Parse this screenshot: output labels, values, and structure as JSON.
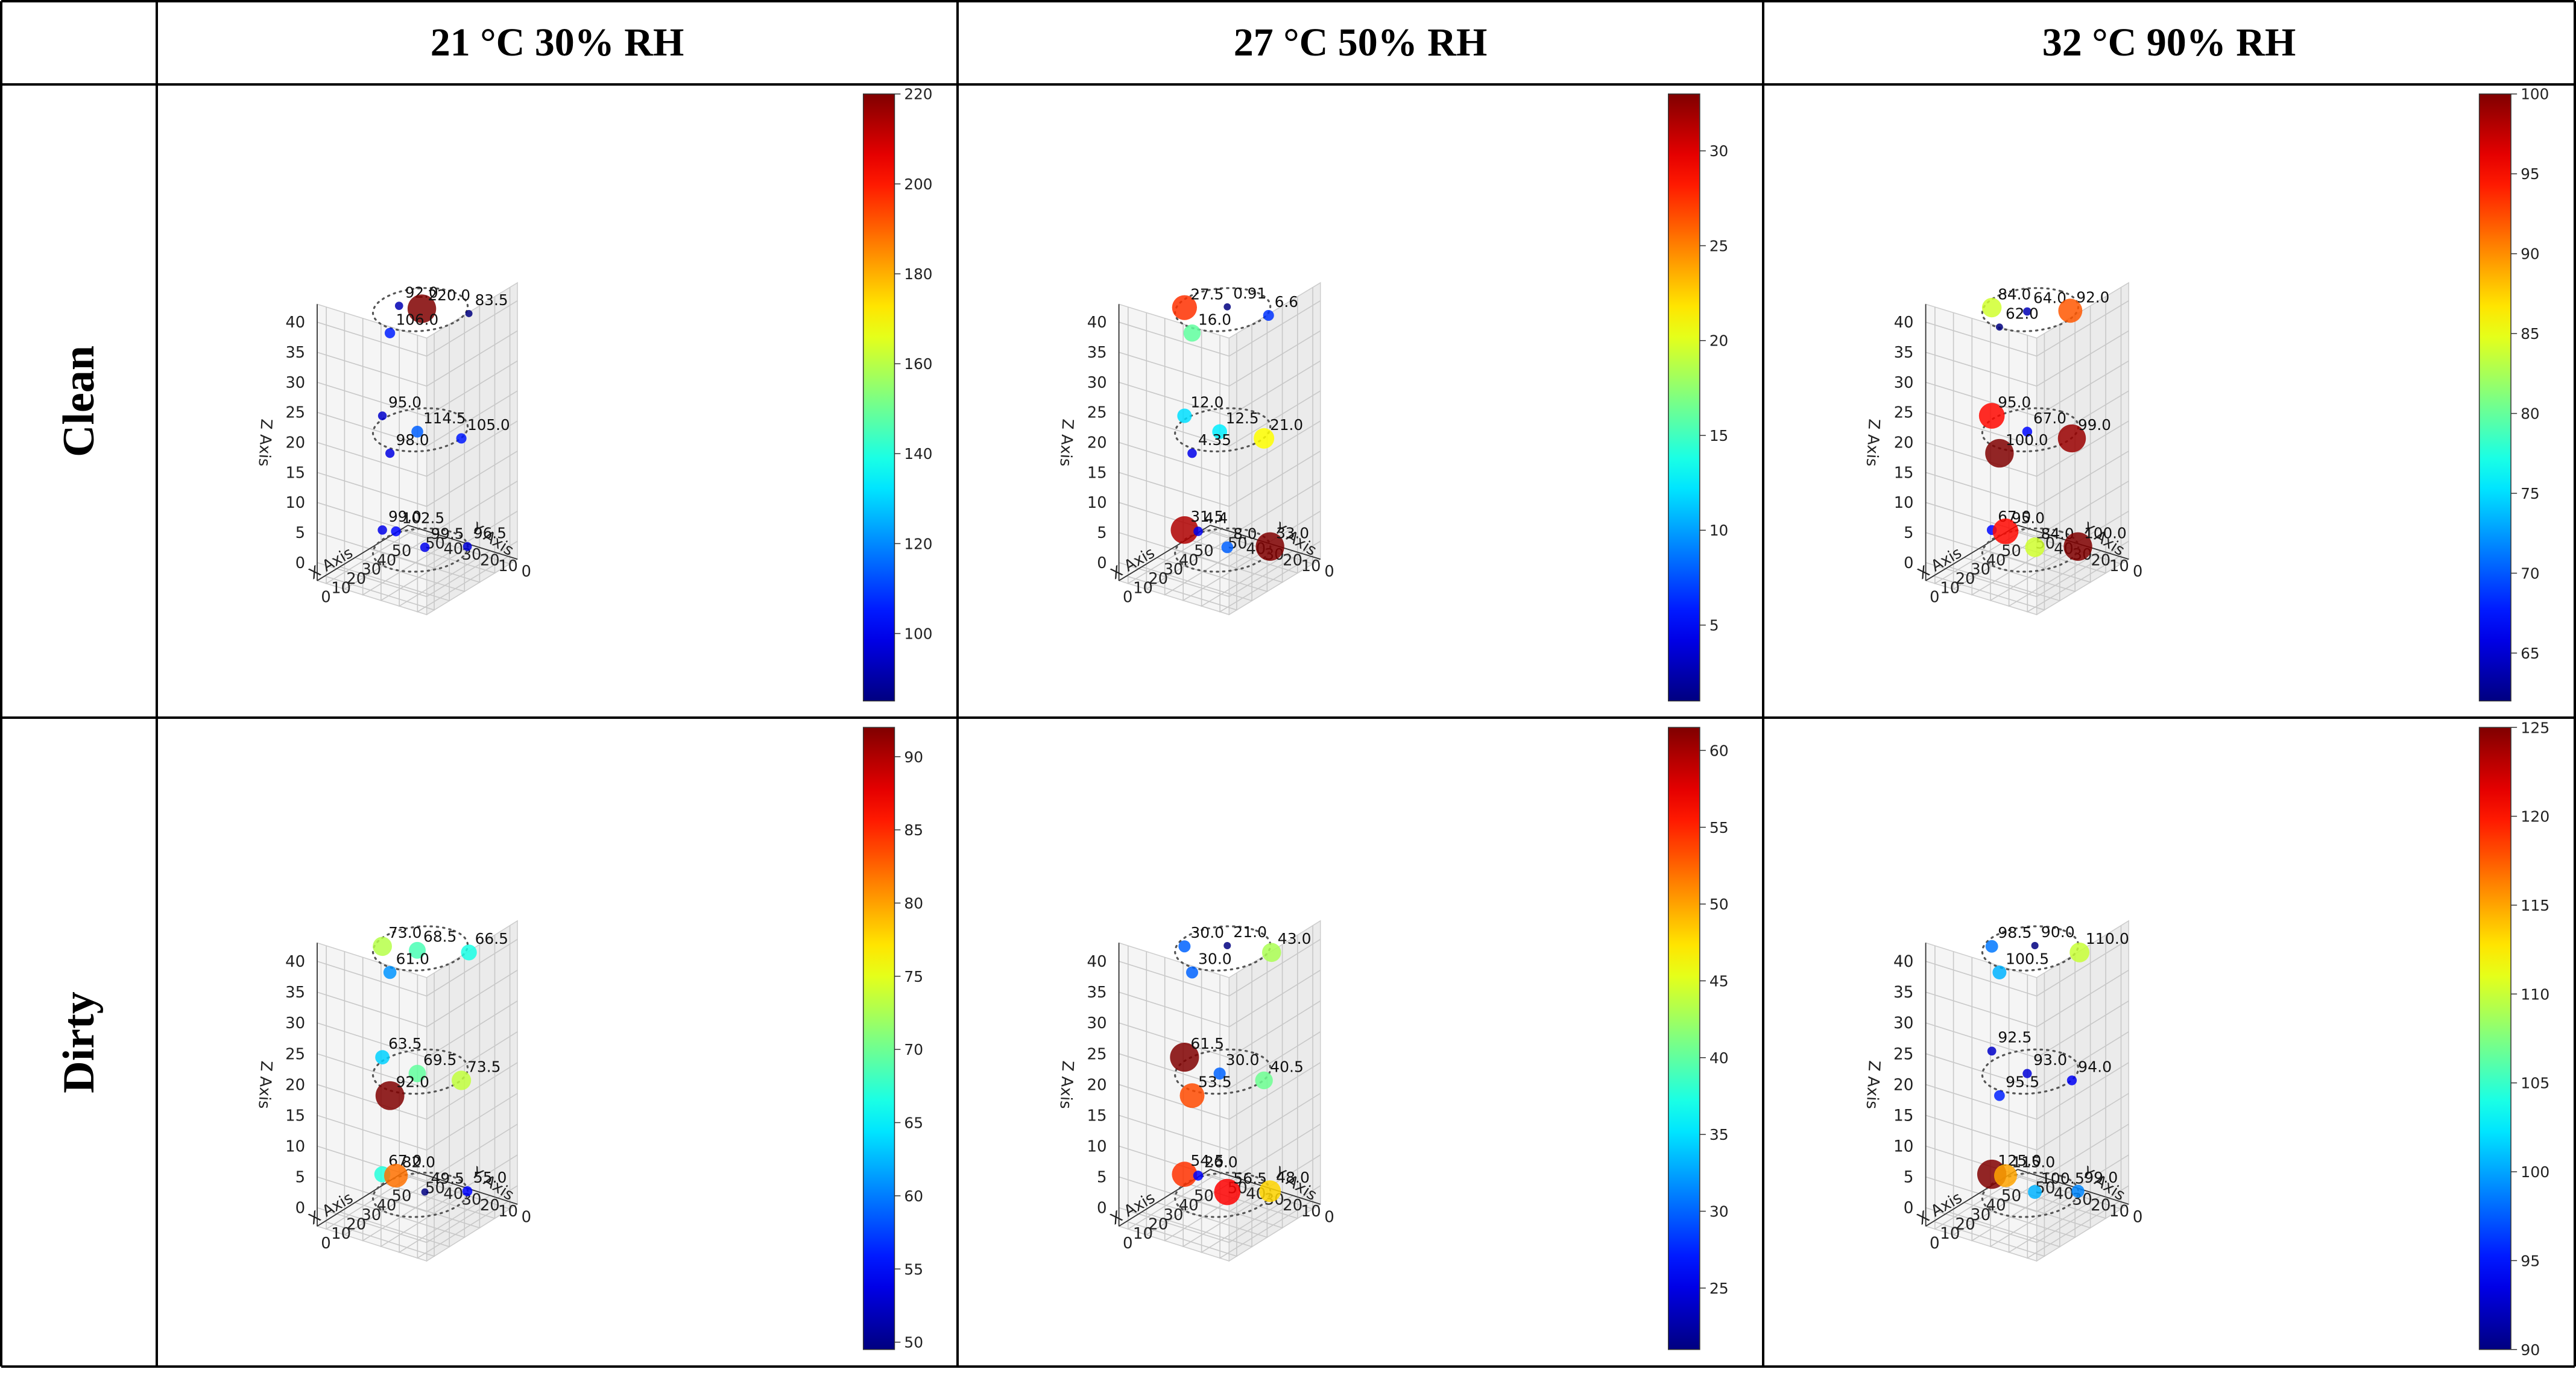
{
  "table": {
    "column_headers": [
      "21 °C 30% RH",
      "27 °C 50% RH",
      "32 °C 90% RH"
    ],
    "row_labels": [
      "Clean",
      "Dirty"
    ]
  },
  "axes": {
    "xlabel": "X Axis",
    "ylabel": "Y Axis",
    "zlabel": "Z Axis",
    "x_ticks": [
      0,
      10,
      20,
      30,
      40,
      50
    ],
    "y_ticks": [
      0,
      10,
      20,
      30,
      40,
      50
    ],
    "z_ticks": [
      0,
      5,
      10,
      15,
      20,
      25,
      30,
      35,
      40
    ]
  },
  "chart_data": [
    {
      "type": "scatter3d",
      "row": "Clean",
      "column": "21 °C 30% RH",
      "xlabel": "X Axis",
      "ylabel": "Y Axis",
      "zlabel": "Z Axis",
      "xlim": [
        0,
        50
      ],
      "ylim": [
        0,
        50
      ],
      "zlim": [
        0,
        40
      ],
      "colorbar": {
        "colormap": "jet",
        "range": [
          85,
          220
        ],
        "ticks": [
          100,
          120,
          140,
          160,
          180,
          200,
          220
        ]
      },
      "points": [
        {
          "x": 25,
          "y": 35,
          "z": 40,
          "value": 92.0,
          "label": "92.0"
        },
        {
          "x": 28,
          "y": 25,
          "z": 40,
          "value": 220.0,
          "label": "220.0"
        },
        {
          "x": 35,
          "y": 5,
          "z": 40,
          "value": 83.5,
          "label": "83.5"
        },
        {
          "x": 25,
          "y": 40,
          "z": 35,
          "value": 106.0,
          "label": "106.0"
        },
        {
          "x": 20,
          "y": 40,
          "z": 22,
          "value": 95.0,
          "label": "95.0"
        },
        {
          "x": 25,
          "y": 25,
          "z": 20,
          "value": 114.5,
          "label": "114.5"
        },
        {
          "x": 30,
          "y": 5,
          "z": 20,
          "value": 105.0,
          "label": "105.0"
        },
        {
          "x": 25,
          "y": 40,
          "z": 15,
          "value": 98.0,
          "label": "98.0"
        },
        {
          "x": 20,
          "y": 40,
          "z": 3,
          "value": 99.0,
          "label": "99.0"
        },
        {
          "x": 30,
          "y": 25,
          "z": 0,
          "value": 99.5,
          "label": "99.5"
        },
        {
          "x": 40,
          "y": 10,
          "z": 0,
          "value": 96.5,
          "label": "96.5"
        },
        {
          "x": 35,
          "y": 45,
          "z": 0,
          "value": 102.5,
          "label": "102.5"
        }
      ]
    },
    {
      "type": "scatter3d",
      "row": "Clean",
      "column": "27 °C 50% RH",
      "xlabel": "X Axis",
      "ylabel": "Y Axis",
      "zlabel": "Z Axis",
      "xlim": [
        0,
        50
      ],
      "ylim": [
        0,
        50
      ],
      "zlim": [
        0,
        40
      ],
      "colorbar": {
        "colormap": "jet",
        "range": [
          1,
          33
        ],
        "ticks": [
          5,
          10,
          15,
          20,
          25,
          30
        ]
      },
      "points": [
        {
          "x": 20,
          "y": 40,
          "z": 40,
          "value": 27.5,
          "label": "27.5"
        },
        {
          "x": 30,
          "y": 25,
          "z": 40,
          "value": 0.91,
          "label": "0.91"
        },
        {
          "x": 33,
          "y": 5,
          "z": 40,
          "value": 6.6,
          "label": "6.6"
        },
        {
          "x": 25,
          "y": 40,
          "z": 35,
          "value": 16.0,
          "label": "16.0"
        },
        {
          "x": 20,
          "y": 40,
          "z": 22,
          "value": 12.0,
          "label": "12.0"
        },
        {
          "x": 25,
          "y": 25,
          "z": 20,
          "value": 12.5,
          "label": "12.5"
        },
        {
          "x": 30,
          "y": 5,
          "z": 20,
          "value": 21.0,
          "label": "21.0"
        },
        {
          "x": 25,
          "y": 40,
          "z": 15,
          "value": 4.35,
          "label": "4.35"
        },
        {
          "x": 20,
          "y": 40,
          "z": 3,
          "value": 31.5,
          "label": "31.5"
        },
        {
          "x": 30,
          "y": 25,
          "z": 0,
          "value": 8.0,
          "label": "8.0"
        },
        {
          "x": 40,
          "y": 10,
          "z": 0,
          "value": 33.0,
          "label": "33.0"
        },
        {
          "x": 35,
          "y": 45,
          "z": 0,
          "value": 4.4,
          "label": "4.4"
        }
      ]
    },
    {
      "type": "scatter3d",
      "row": "Clean",
      "column": "32 °C 90% RH",
      "xlabel": "X Axis",
      "ylabel": "Y Axis",
      "zlabel": "Z Axis",
      "xlim": [
        0,
        50
      ],
      "ylim": [
        0,
        50
      ],
      "zlim": [
        0,
        40
      ],
      "colorbar": {
        "colormap": "jet",
        "range": [
          62,
          100
        ],
        "ticks": [
          65,
          70,
          75,
          80,
          85,
          90,
          95,
          100
        ]
      },
      "points": [
        {
          "x": 20,
          "y": 40,
          "z": 40,
          "value": 84.0,
          "label": "84.0"
        },
        {
          "x": 25,
          "y": 25,
          "z": 40,
          "value": 64.0,
          "label": "64.0"
        },
        {
          "x": 35,
          "y": 10,
          "z": 40,
          "value": 92.0,
          "label": "92.0"
        },
        {
          "x": 25,
          "y": 40,
          "z": 36,
          "value": 62.0,
          "label": "62.0"
        },
        {
          "x": 20,
          "y": 40,
          "z": 22,
          "value": 95.0,
          "label": "95.0"
        },
        {
          "x": 25,
          "y": 25,
          "z": 20,
          "value": 67.0,
          "label": "67.0"
        },
        {
          "x": 30,
          "y": 5,
          "z": 20,
          "value": 99.0,
          "label": "99.0"
        },
        {
          "x": 25,
          "y": 40,
          "z": 15,
          "value": 100.0,
          "label": "100.0"
        },
        {
          "x": 20,
          "y": 40,
          "z": 3,
          "value": 67.0,
          "label": "67.0"
        },
        {
          "x": 30,
          "y": 25,
          "z": 0,
          "value": 84.0,
          "label": "84.0"
        },
        {
          "x": 40,
          "y": 10,
          "z": 0,
          "value": 100.0,
          "label": "100.0"
        },
        {
          "x": 35,
          "y": 45,
          "z": 0,
          "value": 95.0,
          "label": "95.0"
        }
      ]
    },
    {
      "type": "scatter3d",
      "row": "Dirty",
      "column": "21 °C 30% RH",
      "xlabel": "X Axis",
      "ylabel": "Y Axis",
      "zlabel": "Z Axis",
      "xlim": [
        0,
        50
      ],
      "ylim": [
        0,
        50
      ],
      "zlim": [
        0,
        40
      ],
      "colorbar": {
        "colormap": "jet",
        "range": [
          49.5,
          92
        ],
        "ticks": [
          50,
          55,
          60,
          65,
          70,
          75,
          80,
          85,
          90
        ]
      },
      "points": [
        {
          "x": 20,
          "y": 40,
          "z": 40,
          "value": 73.0,
          "label": "73.0"
        },
        {
          "x": 25,
          "y": 25,
          "z": 40,
          "value": 68.5,
          "label": "68.5"
        },
        {
          "x": 35,
          "y": 5,
          "z": 40,
          "value": 66.5,
          "label": "66.5"
        },
        {
          "x": 25,
          "y": 40,
          "z": 35,
          "value": 61.0,
          "label": "61.0"
        },
        {
          "x": 20,
          "y": 40,
          "z": 22,
          "value": 63.5,
          "label": "63.5"
        },
        {
          "x": 25,
          "y": 25,
          "z": 20,
          "value": 69.5,
          "label": "69.5"
        },
        {
          "x": 30,
          "y": 5,
          "z": 20,
          "value": 73.5,
          "label": "73.5"
        },
        {
          "x": 25,
          "y": 40,
          "z": 15,
          "value": 92.0,
          "label": "92.0"
        },
        {
          "x": 20,
          "y": 40,
          "z": 3,
          "value": 67.0,
          "label": "67.0"
        },
        {
          "x": 30,
          "y": 25,
          "z": 0,
          "value": 49.5,
          "label": "49.5"
        },
        {
          "x": 40,
          "y": 10,
          "z": 0,
          "value": 55.0,
          "label": "55.0"
        },
        {
          "x": 35,
          "y": 45,
          "z": 0,
          "value": 82.0,
          "label": "82.0"
        }
      ]
    },
    {
      "type": "scatter3d",
      "row": "Dirty",
      "column": "27 °C 50% RH",
      "xlabel": "X Axis",
      "ylabel": "Y Axis",
      "zlabel": "Z Axis",
      "xlim": [
        0,
        50
      ],
      "ylim": [
        0,
        50
      ],
      "zlim": [
        0,
        40
      ],
      "colorbar": {
        "colormap": "jet",
        "range": [
          21,
          61.5
        ],
        "ticks": [
          25,
          30,
          35,
          40,
          45,
          50,
          55,
          60
        ]
      },
      "points": [
        {
          "x": 20,
          "y": 40,
          "z": 40,
          "value": 30.0,
          "label": "30.0"
        },
        {
          "x": 30,
          "y": 25,
          "z": 40,
          "value": 21.0,
          "label": "21.0"
        },
        {
          "x": 35,
          "y": 5,
          "z": 40,
          "value": 43.0,
          "label": "43.0"
        },
        {
          "x": 25,
          "y": 40,
          "z": 35,
          "value": 30.0,
          "label": "30.0"
        },
        {
          "x": 20,
          "y": 40,
          "z": 22,
          "value": 61.5,
          "label": "61.5"
        },
        {
          "x": 25,
          "y": 25,
          "z": 20,
          "value": 30.0,
          "label": "30.0"
        },
        {
          "x": 30,
          "y": 5,
          "z": 20,
          "value": 40.5,
          "label": "40.5"
        },
        {
          "x": 25,
          "y": 40,
          "z": 15,
          "value": 53.5,
          "label": "53.5"
        },
        {
          "x": 20,
          "y": 40,
          "z": 3,
          "value": 54.5,
          "label": "54.5"
        },
        {
          "x": 30,
          "y": 25,
          "z": 0,
          "value": 56.5,
          "label": "56.5"
        },
        {
          "x": 40,
          "y": 10,
          "z": 0,
          "value": 48.0,
          "label": "48.0"
        },
        {
          "x": 35,
          "y": 45,
          "z": 0,
          "value": 26.0,
          "label": "26.0"
        }
      ]
    },
    {
      "type": "scatter3d",
      "row": "Dirty",
      "column": "32 °C 90% RH",
      "xlabel": "X Axis",
      "ylabel": "Y Axis",
      "zlabel": "Z Axis",
      "xlim": [
        0,
        50
      ],
      "ylim": [
        0,
        50
      ],
      "zlim": [
        0,
        40
      ],
      "colorbar": {
        "colormap": "jet",
        "range": [
          90,
          125
        ],
        "ticks": [
          90,
          95,
          100,
          105,
          110,
          115,
          120,
          125
        ]
      },
      "points": [
        {
          "x": 20,
          "y": 40,
          "z": 40,
          "value": 98.5,
          "label": "98.5"
        },
        {
          "x": 30,
          "y": 25,
          "z": 40,
          "value": 90.0,
          "label": "90.0"
        },
        {
          "x": 35,
          "y": 5,
          "z": 40,
          "value": 110.0,
          "label": "110.0"
        },
        {
          "x": 25,
          "y": 40,
          "z": 35,
          "value": 100.5,
          "label": "100.5"
        },
        {
          "x": 20,
          "y": 40,
          "z": 23,
          "value": 92.5,
          "label": "92.5"
        },
        {
          "x": 25,
          "y": 25,
          "z": 20,
          "value": 93.0,
          "label": "93.0"
        },
        {
          "x": 30,
          "y": 5,
          "z": 20,
          "value": 94.0,
          "label": "94.0"
        },
        {
          "x": 25,
          "y": 40,
          "z": 15,
          "value": 95.5,
          "label": "95.5"
        },
        {
          "x": 20,
          "y": 40,
          "z": 3,
          "value": 125.0,
          "label": "125.0"
        },
        {
          "x": 30,
          "y": 25,
          "z": 0,
          "value": 100.5,
          "label": "100.5"
        },
        {
          "x": 40,
          "y": 10,
          "z": 0,
          "value": 99.0,
          "label": "99.0"
        },
        {
          "x": 35,
          "y": 45,
          "z": 0,
          "value": 115.0,
          "label": "115.0"
        }
      ]
    }
  ]
}
